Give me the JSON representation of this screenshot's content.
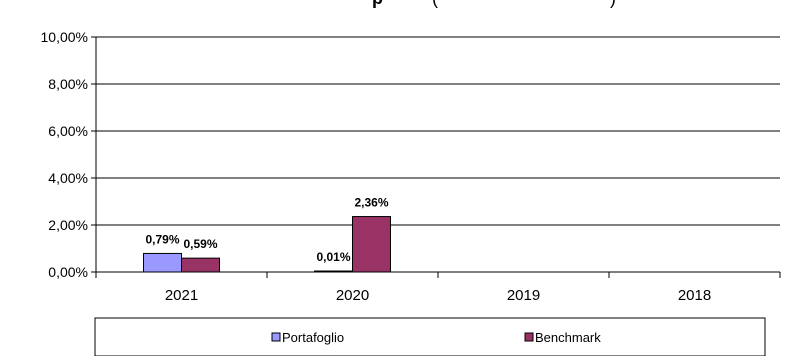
{
  "chart_data": {
    "type": "bar",
    "title_fragment": "p",
    "title_suffix": "(",
    "title_suffix2": ")",
    "categories": [
      "2021",
      "2020",
      "2019",
      "2018"
    ],
    "series": [
      {
        "name": "Portafoglio",
        "color": "#9999ff",
        "values": [
          0.79,
          0.01,
          null,
          null
        ],
        "labels": [
          "0,79%",
          "0,01%",
          "",
          ""
        ]
      },
      {
        "name": "Benchmark",
        "color": "#993366",
        "values": [
          0.59,
          2.36,
          null,
          null
        ],
        "labels": [
          "0,59%",
          "2,36%",
          "",
          ""
        ]
      }
    ],
    "ylim": [
      0,
      10
    ],
    "yticks": [
      0,
      2,
      4,
      6,
      8,
      10
    ],
    "ytick_labels": [
      "0,00%",
      "2,00%",
      "4,00%",
      "6,00%",
      "8,00%",
      "10,00%"
    ],
    "grid": true,
    "legend_placement": "bottom"
  }
}
